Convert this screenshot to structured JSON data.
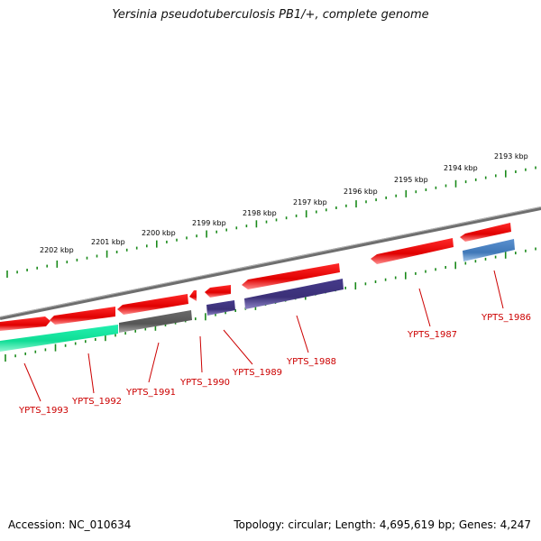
{
  "title": "Yersinia pseudotuberculosis PB1/+, complete genome",
  "footer": {
    "accession": "Accession: NC_010634",
    "summary": "Topology: circular; Length: 4,695,619 bp; Genes: 4,247"
  },
  "colors": {
    "background": "#ffffff",
    "backbone": "#7a7a7a",
    "tick": "#1a8a1a",
    "gene_red": "#ee1111",
    "gene_navy": "#4a3f8f",
    "gene_gray": "#555555",
    "gene_teal": "#18e6a0",
    "gene_blue": "#4f86c6",
    "label": "#cc0000"
  },
  "kbp_labels": [
    "2193 kbp",
    "2194 kbp",
    "2195 kbp",
    "2196 kbp",
    "2197 kbp",
    "2198 kbp",
    "2199 kbp",
    "2200 kbp",
    "2201 kbp",
    "2202 kbp"
  ],
  "gene_labels": [
    "YPTS_1986",
    "YPTS_1987",
    "YPTS_1988",
    "YPTS_1989",
    "YPTS_1990",
    "YPTS_1991",
    "YPTS_1992",
    "YPTS_1993"
  ]
}
